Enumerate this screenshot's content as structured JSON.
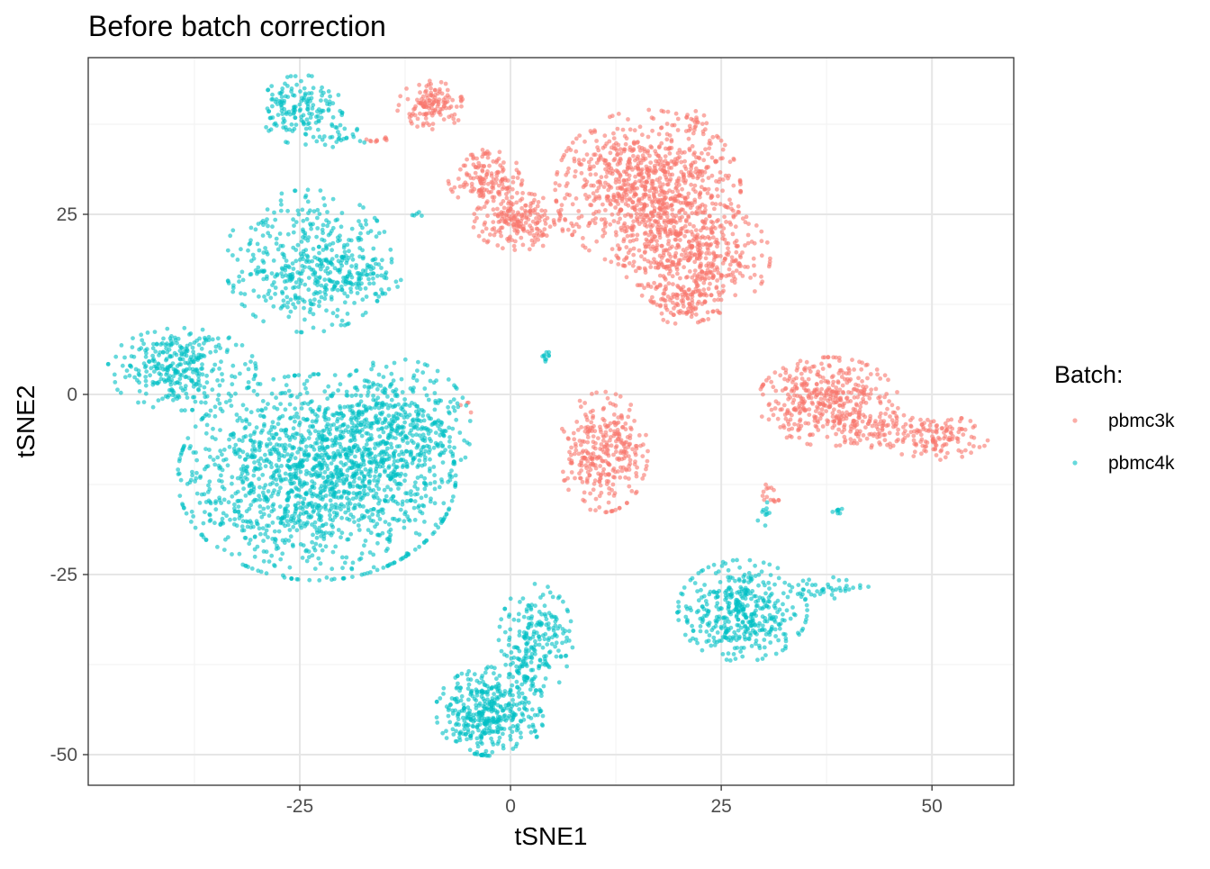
{
  "chart_data": {
    "type": "scatter",
    "title": "Before batch correction",
    "xlabel": "tSNE1",
    "ylabel": "tSNE2",
    "xlim": [
      -50.1,
      59.7
    ],
    "ylim": [
      -54.25,
      46.75
    ],
    "x_ticks": [
      -25,
      0,
      25,
      50
    ],
    "x_tick_labels": [
      "-25",
      "0",
      "25",
      "50"
    ],
    "y_ticks": [
      -50,
      -25,
      0,
      25
    ],
    "y_tick_labels": [
      "-50",
      "-25",
      "0",
      "25"
    ],
    "grid": true,
    "legend": {
      "title": "Batch:",
      "placement": "right",
      "entries": [
        "pbmc3k",
        "pbmc4k"
      ]
    },
    "point_alpha": 0.6,
    "series": [
      {
        "name": "pbmc3k",
        "color": "#F8766D",
        "clusters": [
          {
            "cx": -9.5,
            "cy": 40,
            "sx": 1.8,
            "sy": 1.6,
            "n": 130
          },
          {
            "cx": -15.7,
            "cy": 35.4,
            "sx": 0.8,
            "sy": 0.3,
            "n": 10
          },
          {
            "cx": -3,
            "cy": 30,
            "sx": 2,
            "sy": 1.8,
            "n": 150
          },
          {
            "cx": 1,
            "cy": 24,
            "sx": 2.5,
            "sy": 1.8,
            "n": 200
          },
          {
            "cx": 16.3,
            "cy": 28.5,
            "sx": 5,
            "sy": 5,
            "n": 900
          },
          {
            "cx": 22,
            "cy": 19,
            "sx": 4,
            "sy": 3.5,
            "n": 400
          },
          {
            "cx": 21,
            "cy": 13,
            "sx": 2,
            "sy": 1.6,
            "n": 100
          },
          {
            "cx": 21.5,
            "cy": 37.5,
            "sx": 0.8,
            "sy": 1,
            "n": 20
          },
          {
            "cx": 11,
            "cy": -8,
            "sx": 2.4,
            "sy": 3.8,
            "n": 320
          },
          {
            "cx": 37.7,
            "cy": -1,
            "sx": 3.8,
            "sy": 2.8,
            "n": 420
          },
          {
            "cx": 44,
            "cy": -5,
            "sx": 2,
            "sy": 1.2,
            "n": 60
          },
          {
            "cx": 50.5,
            "cy": -6,
            "sx": 2.8,
            "sy": 1.4,
            "n": 130
          },
          {
            "cx": 30.8,
            "cy": -14,
            "sx": 0.8,
            "sy": 0.7,
            "n": 15
          },
          {
            "cx": -5,
            "cy": -2,
            "sx": 0.6,
            "sy": 0.6,
            "n": 4
          }
        ]
      },
      {
        "name": "pbmc4k",
        "color": "#00BFC4",
        "clusters": [
          {
            "cx": -24.8,
            "cy": 39.5,
            "sx": 2.2,
            "sy": 2.2,
            "n": 160
          },
          {
            "cx": -20,
            "cy": 36,
            "sx": 1.5,
            "sy": 0.8,
            "n": 25
          },
          {
            "cx": -24,
            "cy": 18.5,
            "sx": 4.5,
            "sy": 4.5,
            "n": 420
          },
          {
            "cx": -18.5,
            "cy": 16,
            "sx": 2.5,
            "sy": 1.5,
            "n": 80
          },
          {
            "cx": -39,
            "cy": 3.5,
            "sx": 4,
            "sy": 2.6,
            "n": 320
          },
          {
            "cx": -23,
            "cy": -11.5,
            "sx": 7.5,
            "sy": 6.5,
            "n": 1500
          },
          {
            "cx": -13.5,
            "cy": -5,
            "sx": 4,
            "sy": 4.5,
            "n": 420
          },
          {
            "cx": -2.3,
            "cy": -44,
            "sx": 3,
            "sy": 2.8,
            "n": 420
          },
          {
            "cx": 3,
            "cy": -34,
            "sx": 2,
            "sy": 3.5,
            "n": 220
          },
          {
            "cx": 27.5,
            "cy": -30,
            "sx": 3.5,
            "sy": 3.2,
            "n": 420
          },
          {
            "cx": 37.5,
            "cy": -26.8,
            "sx": 2.5,
            "sy": 0.7,
            "n": 40
          },
          {
            "cx": 4.4,
            "cy": 5.2,
            "sx": 0.4,
            "sy": 0.3,
            "n": 10
          },
          {
            "cx": 30,
            "cy": -16.5,
            "sx": 0.4,
            "sy": 0.8,
            "n": 10
          },
          {
            "cx": 38.8,
            "cy": -16,
            "sx": 0.3,
            "sy": 0.3,
            "n": 8
          },
          {
            "cx": -11,
            "cy": 24.8,
            "sx": 0.5,
            "sy": 0.3,
            "n": 5
          }
        ]
      }
    ]
  }
}
